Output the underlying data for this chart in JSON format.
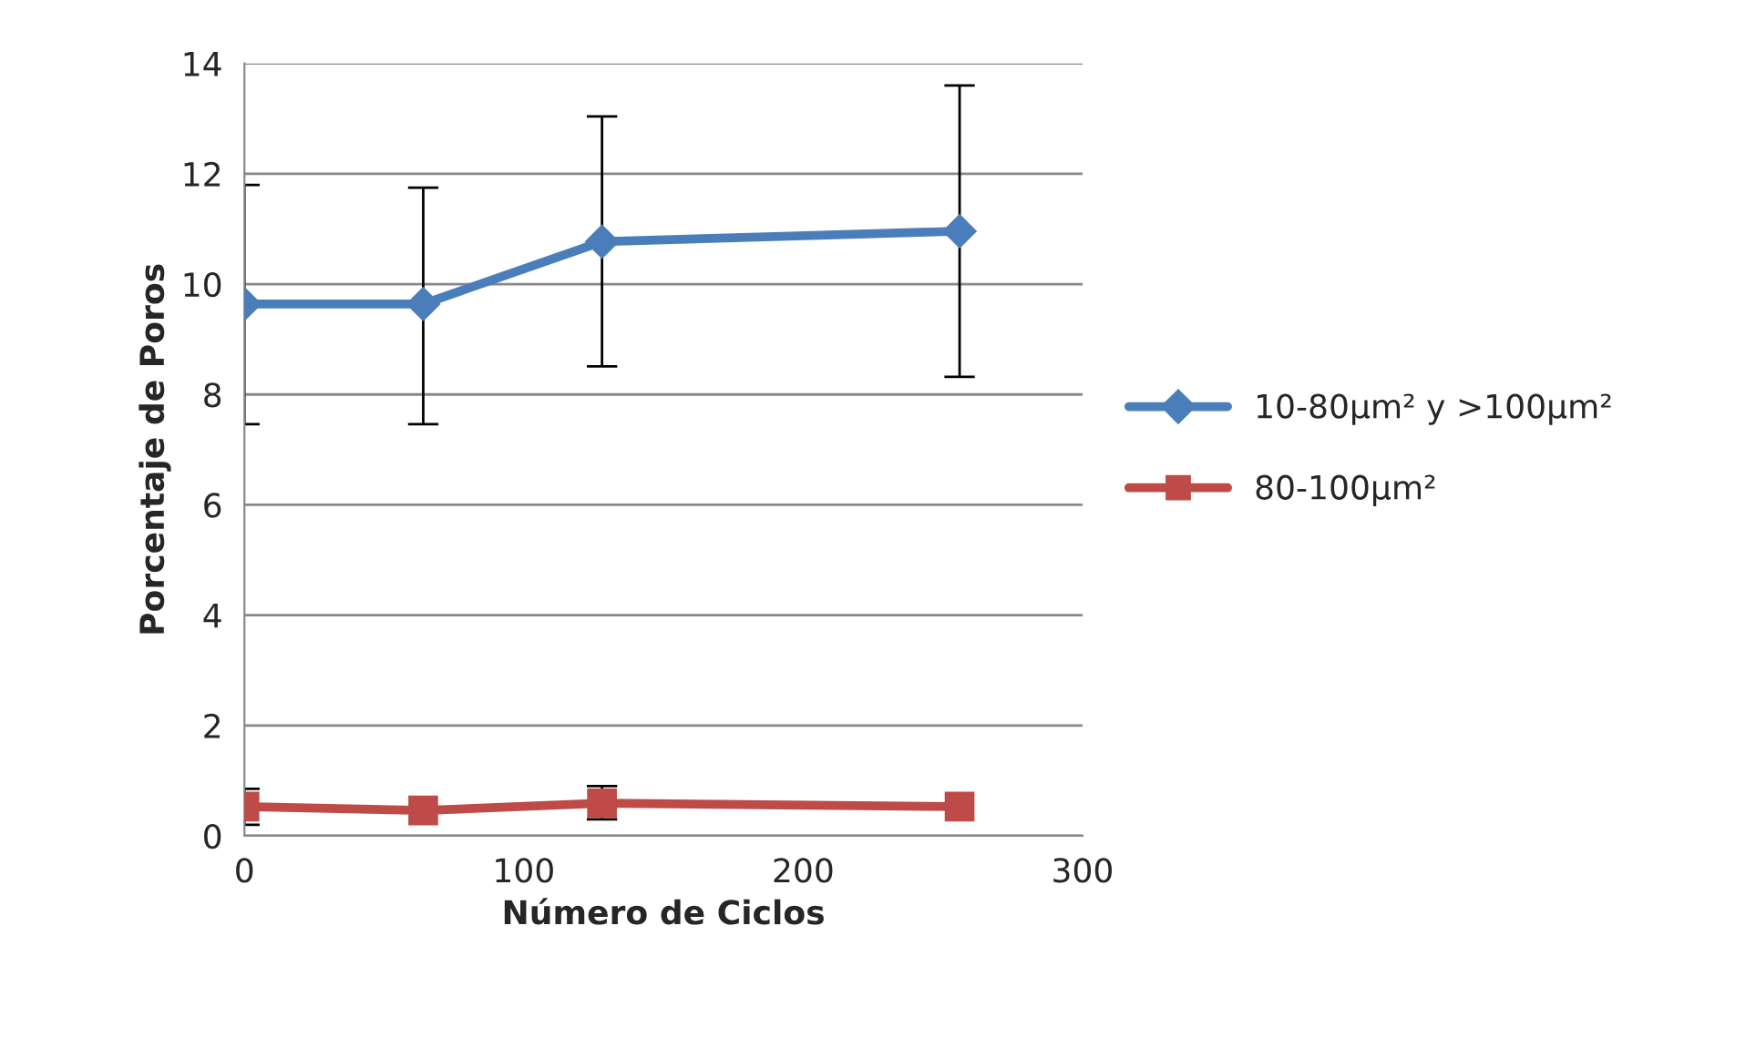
{
  "chart_data": {
    "type": "line",
    "xlabel": "Número de Ciclos",
    "ylabel": "Porcentaje de Poros",
    "xlim": [
      0,
      300
    ],
    "xticks": [
      0,
      100,
      200,
      300
    ],
    "ylim": [
      0,
      14
    ],
    "yticks": [
      0,
      2,
      4,
      6,
      8,
      10,
      12,
      14
    ],
    "grid": "y",
    "legend": "right",
    "series": [
      {
        "name": "10-80µm² y >100µm²",
        "color": "#4a7ebb",
        "marker": "diamond",
        "x": [
          0,
          64,
          128,
          256
        ],
        "values": [
          9.64,
          9.64,
          10.77,
          10.96
        ],
        "errors": [
          [
            7.46,
            11.8
          ],
          [
            7.46,
            11.75
          ],
          [
            8.51,
            13.04
          ],
          [
            8.32,
            13.6
          ]
        ]
      },
      {
        "name": "80-100µm²",
        "color": "#be4b48",
        "marker": "square",
        "x": [
          0,
          64,
          128,
          256
        ],
        "values": [
          0.53,
          0.46,
          0.59,
          0.53
        ],
        "errors": [
          [
            0.2,
            0.85
          ],
          null,
          [
            0.3,
            0.9
          ],
          null
        ]
      }
    ]
  }
}
